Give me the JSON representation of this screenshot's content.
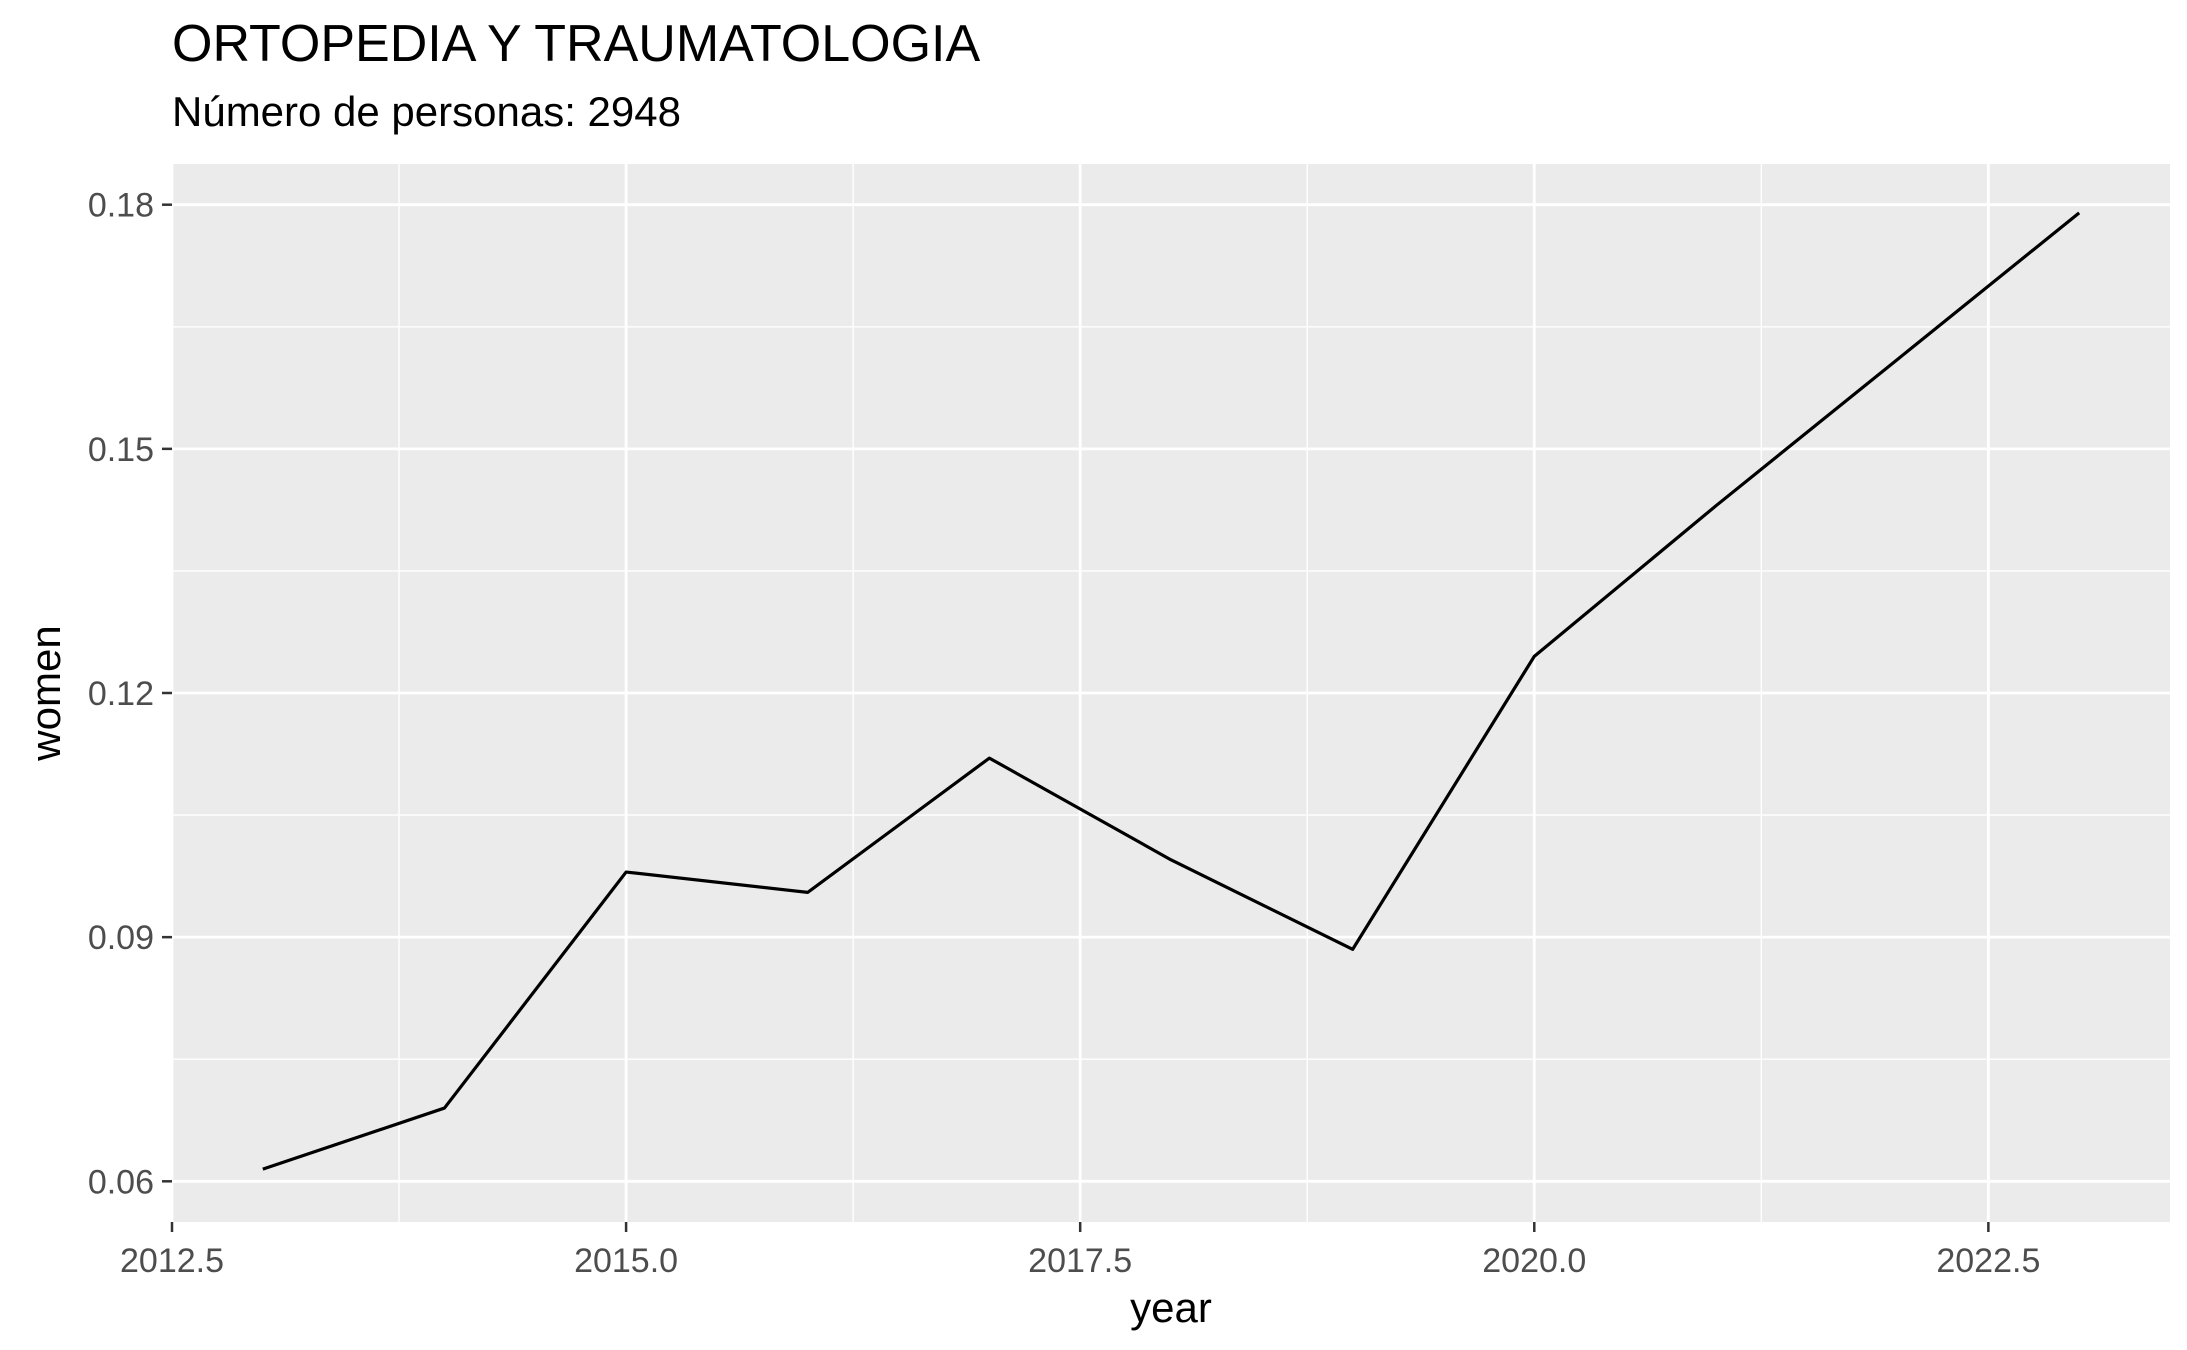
{
  "chart_data": {
    "type": "line",
    "title": "ORTOPEDIA Y TRAUMATOLOGIA",
    "subtitle": "Número de personas: 2948",
    "xlabel": "year",
    "ylabel": "women",
    "xlim": [
      2012.5,
      2023.5
    ],
    "ylim": [
      0.055,
      0.185
    ],
    "x_ticks": [
      2012.5,
      2015.0,
      2017.5,
      2020.0,
      2022.5
    ],
    "x_tick_labels": [
      "2012.5",
      "2015.0",
      "2017.5",
      "2020.0",
      "2022.5"
    ],
    "y_ticks": [
      0.06,
      0.09,
      0.12,
      0.15,
      0.18
    ],
    "y_tick_labels": [
      "0.06",
      "0.09",
      "0.12",
      "0.15",
      "0.18"
    ],
    "grid": true,
    "series": [
      {
        "x": [
          2013,
          2014,
          2015,
          2016,
          2017,
          2018,
          2019,
          2020,
          2021,
          2022,
          2023
        ],
        "y": [
          0.0615,
          0.069,
          0.098,
          0.0955,
          0.112,
          0.0995,
          0.0885,
          0.1245,
          0.143,
          0.161,
          0.179
        ]
      }
    ],
    "colors": {
      "panel": "#ebebeb",
      "grid": "#ffffff",
      "line": "#000000",
      "tick": "#4d4d4d"
    }
  }
}
